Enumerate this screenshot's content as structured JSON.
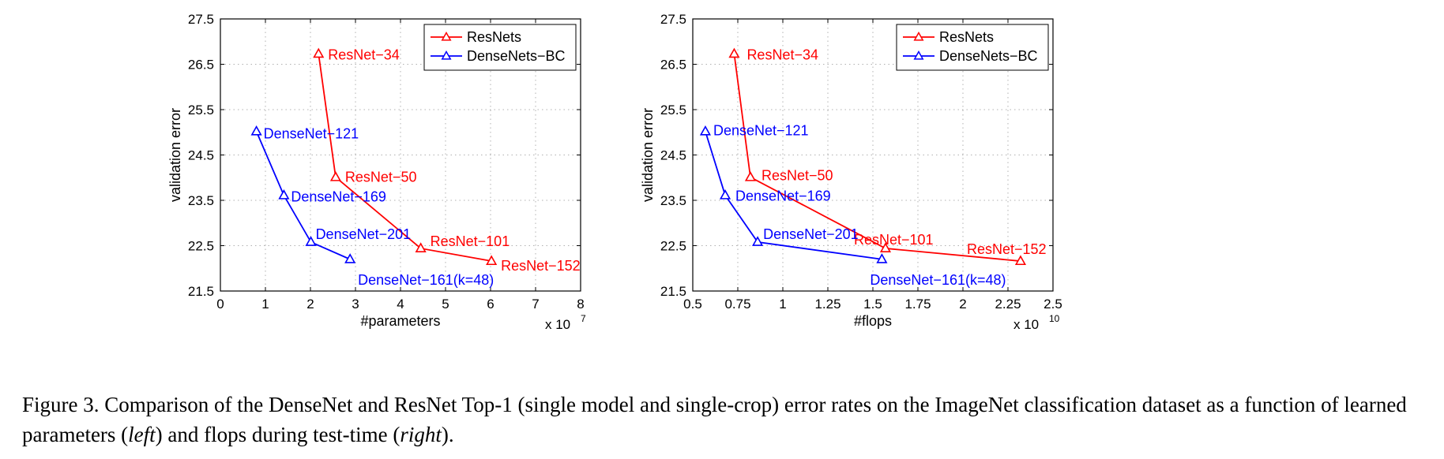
{
  "chart_data": [
    {
      "type": "line",
      "xlabel": "#parameters",
      "ylabel": "validation error",
      "x_multiplier_label": "x 10",
      "x_multiplier_exp": "7",
      "xlim": [
        0,
        8
      ],
      "ylim": [
        21.5,
        27.5
      ],
      "x_ticks": [
        0,
        1,
        2,
        3,
        4,
        5,
        6,
        7,
        8
      ],
      "x_tick_labels": [
        "0",
        "1",
        "2",
        "3",
        "4",
        "5",
        "6",
        "7",
        "8"
      ],
      "y_ticks": [
        21.5,
        22.5,
        23.5,
        24.5,
        25.5,
        26.5,
        27.5
      ],
      "y_tick_labels": [
        "21.5",
        "22.5",
        "23.5",
        "24.5",
        "25.5",
        "26.5",
        "27.5"
      ],
      "grid": true,
      "legend_position": "top-right",
      "series": [
        {
          "name": "ResNets",
          "color": "#ff0000",
          "marker": "triangle",
          "points": [
            {
              "x": 2.18,
              "y": 26.73,
              "label": "ResNet−34"
            },
            {
              "x": 2.56,
              "y": 24.01,
              "label": "ResNet−50"
            },
            {
              "x": 4.45,
              "y": 22.44,
              "label": "ResNet−101"
            },
            {
              "x": 6.02,
              "y": 22.16,
              "label": "ResNet−152"
            }
          ]
        },
        {
          "name": "DenseNets−BC",
          "color": "#0000ff",
          "marker": "triangle",
          "points": [
            {
              "x": 0.8,
              "y": 25.02,
              "label": "DenseNet−121"
            },
            {
              "x": 1.41,
              "y": 23.61,
              "label": "DenseNet−169"
            },
            {
              "x": 2.01,
              "y": 22.58,
              "label": "DenseNet−201"
            },
            {
              "x": 2.88,
              "y": 22.2,
              "label": "DenseNet−161(k=48)"
            }
          ]
        }
      ]
    },
    {
      "type": "line",
      "xlabel": "#flops",
      "ylabel": "validation error",
      "x_multiplier_label": "x 10",
      "x_multiplier_exp": "10",
      "xlim": [
        0.5,
        2.5
      ],
      "ylim": [
        21.5,
        27.5
      ],
      "x_ticks": [
        0.5,
        0.75,
        1,
        1.25,
        1.5,
        1.75,
        2,
        2.25,
        2.5
      ],
      "x_tick_labels": [
        "0.5",
        "0.75",
        "1",
        "1.25",
        "1.5",
        "1.75",
        "2",
        "2.25",
        "2.5"
      ],
      "y_ticks": [
        21.5,
        22.5,
        23.5,
        24.5,
        25.5,
        26.5,
        27.5
      ],
      "y_tick_labels": [
        "21.5",
        "22.5",
        "23.5",
        "24.5",
        "25.5",
        "26.5",
        "27.5"
      ],
      "grid": true,
      "legend_position": "top-right",
      "series": [
        {
          "name": "ResNets",
          "color": "#ff0000",
          "marker": "triangle",
          "points": [
            {
              "x": 0.73,
              "y": 26.73,
              "label": "ResNet−34"
            },
            {
              "x": 0.82,
              "y": 24.01,
              "label": "ResNet−50"
            },
            {
              "x": 1.57,
              "y": 22.44,
              "label": "ResNet−101"
            },
            {
              "x": 2.32,
              "y": 22.16,
              "label": "ResNet−152"
            }
          ]
        },
        {
          "name": "DenseNets−BC",
          "color": "#0000ff",
          "marker": "triangle",
          "points": [
            {
              "x": 0.57,
              "y": 25.02,
              "label": "DenseNet−121"
            },
            {
              "x": 0.68,
              "y": 23.61,
              "label": "DenseNet−169"
            },
            {
              "x": 0.86,
              "y": 22.58,
              "label": "DenseNet−201"
            },
            {
              "x": 1.55,
              "y": 22.2,
              "label": "DenseNet−161(k=48)"
            }
          ]
        }
      ]
    }
  ],
  "caption": {
    "prefix": "Figure 3. Comparison of the DenseNet and ResNet Top-1 (single model and single-crop) error rates on the ImageNet classification dataset as a function of learned parameters (",
    "left_word": "left",
    "middle": ") and flops during test-time (",
    "right_word": "right",
    "suffix": ")."
  }
}
